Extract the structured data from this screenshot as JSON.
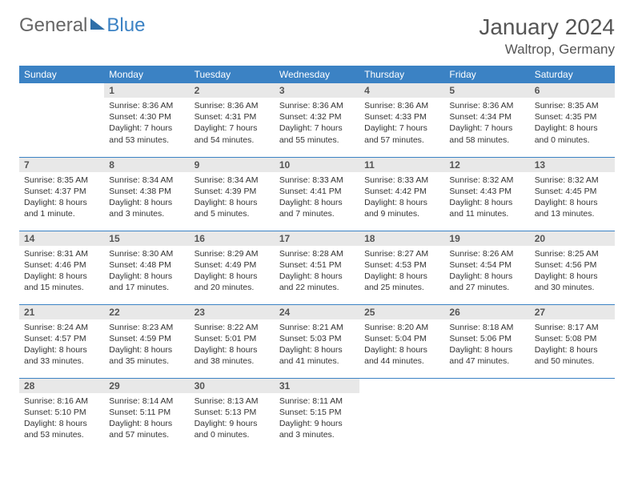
{
  "logo": {
    "text1": "General",
    "text2": "Blue"
  },
  "title": {
    "month": "January 2024",
    "location": "Waltrop, Germany"
  },
  "colors": {
    "header_bg": "#3b82c4",
    "header_text": "#ffffff",
    "daynum_bg": "#e8e8e8",
    "border": "#3b82c4",
    "text": "#333333"
  },
  "day_headers": [
    "Sunday",
    "Monday",
    "Tuesday",
    "Wednesday",
    "Thursday",
    "Friday",
    "Saturday"
  ],
  "weeks": [
    [
      {
        "n": "",
        "sr": "",
        "ss": "",
        "dl": ""
      },
      {
        "n": "1",
        "sr": "Sunrise: 8:36 AM",
        "ss": "Sunset: 4:30 PM",
        "dl": "Daylight: 7 hours and 53 minutes."
      },
      {
        "n": "2",
        "sr": "Sunrise: 8:36 AM",
        "ss": "Sunset: 4:31 PM",
        "dl": "Daylight: 7 hours and 54 minutes."
      },
      {
        "n": "3",
        "sr": "Sunrise: 8:36 AM",
        "ss": "Sunset: 4:32 PM",
        "dl": "Daylight: 7 hours and 55 minutes."
      },
      {
        "n": "4",
        "sr": "Sunrise: 8:36 AM",
        "ss": "Sunset: 4:33 PM",
        "dl": "Daylight: 7 hours and 57 minutes."
      },
      {
        "n": "5",
        "sr": "Sunrise: 8:36 AM",
        "ss": "Sunset: 4:34 PM",
        "dl": "Daylight: 7 hours and 58 minutes."
      },
      {
        "n": "6",
        "sr": "Sunrise: 8:35 AM",
        "ss": "Sunset: 4:35 PM",
        "dl": "Daylight: 8 hours and 0 minutes."
      }
    ],
    [
      {
        "n": "7",
        "sr": "Sunrise: 8:35 AM",
        "ss": "Sunset: 4:37 PM",
        "dl": "Daylight: 8 hours and 1 minute."
      },
      {
        "n": "8",
        "sr": "Sunrise: 8:34 AM",
        "ss": "Sunset: 4:38 PM",
        "dl": "Daylight: 8 hours and 3 minutes."
      },
      {
        "n": "9",
        "sr": "Sunrise: 8:34 AM",
        "ss": "Sunset: 4:39 PM",
        "dl": "Daylight: 8 hours and 5 minutes."
      },
      {
        "n": "10",
        "sr": "Sunrise: 8:33 AM",
        "ss": "Sunset: 4:41 PM",
        "dl": "Daylight: 8 hours and 7 minutes."
      },
      {
        "n": "11",
        "sr": "Sunrise: 8:33 AM",
        "ss": "Sunset: 4:42 PM",
        "dl": "Daylight: 8 hours and 9 minutes."
      },
      {
        "n": "12",
        "sr": "Sunrise: 8:32 AM",
        "ss": "Sunset: 4:43 PM",
        "dl": "Daylight: 8 hours and 11 minutes."
      },
      {
        "n": "13",
        "sr": "Sunrise: 8:32 AM",
        "ss": "Sunset: 4:45 PM",
        "dl": "Daylight: 8 hours and 13 minutes."
      }
    ],
    [
      {
        "n": "14",
        "sr": "Sunrise: 8:31 AM",
        "ss": "Sunset: 4:46 PM",
        "dl": "Daylight: 8 hours and 15 minutes."
      },
      {
        "n": "15",
        "sr": "Sunrise: 8:30 AM",
        "ss": "Sunset: 4:48 PM",
        "dl": "Daylight: 8 hours and 17 minutes."
      },
      {
        "n": "16",
        "sr": "Sunrise: 8:29 AM",
        "ss": "Sunset: 4:49 PM",
        "dl": "Daylight: 8 hours and 20 minutes."
      },
      {
        "n": "17",
        "sr": "Sunrise: 8:28 AM",
        "ss": "Sunset: 4:51 PM",
        "dl": "Daylight: 8 hours and 22 minutes."
      },
      {
        "n": "18",
        "sr": "Sunrise: 8:27 AM",
        "ss": "Sunset: 4:53 PM",
        "dl": "Daylight: 8 hours and 25 minutes."
      },
      {
        "n": "19",
        "sr": "Sunrise: 8:26 AM",
        "ss": "Sunset: 4:54 PM",
        "dl": "Daylight: 8 hours and 27 minutes."
      },
      {
        "n": "20",
        "sr": "Sunrise: 8:25 AM",
        "ss": "Sunset: 4:56 PM",
        "dl": "Daylight: 8 hours and 30 minutes."
      }
    ],
    [
      {
        "n": "21",
        "sr": "Sunrise: 8:24 AM",
        "ss": "Sunset: 4:57 PM",
        "dl": "Daylight: 8 hours and 33 minutes."
      },
      {
        "n": "22",
        "sr": "Sunrise: 8:23 AM",
        "ss": "Sunset: 4:59 PM",
        "dl": "Daylight: 8 hours and 35 minutes."
      },
      {
        "n": "23",
        "sr": "Sunrise: 8:22 AM",
        "ss": "Sunset: 5:01 PM",
        "dl": "Daylight: 8 hours and 38 minutes."
      },
      {
        "n": "24",
        "sr": "Sunrise: 8:21 AM",
        "ss": "Sunset: 5:03 PM",
        "dl": "Daylight: 8 hours and 41 minutes."
      },
      {
        "n": "25",
        "sr": "Sunrise: 8:20 AM",
        "ss": "Sunset: 5:04 PM",
        "dl": "Daylight: 8 hours and 44 minutes."
      },
      {
        "n": "26",
        "sr": "Sunrise: 8:18 AM",
        "ss": "Sunset: 5:06 PM",
        "dl": "Daylight: 8 hours and 47 minutes."
      },
      {
        "n": "27",
        "sr": "Sunrise: 8:17 AM",
        "ss": "Sunset: 5:08 PM",
        "dl": "Daylight: 8 hours and 50 minutes."
      }
    ],
    [
      {
        "n": "28",
        "sr": "Sunrise: 8:16 AM",
        "ss": "Sunset: 5:10 PM",
        "dl": "Daylight: 8 hours and 53 minutes."
      },
      {
        "n": "29",
        "sr": "Sunrise: 8:14 AM",
        "ss": "Sunset: 5:11 PM",
        "dl": "Daylight: 8 hours and 57 minutes."
      },
      {
        "n": "30",
        "sr": "Sunrise: 8:13 AM",
        "ss": "Sunset: 5:13 PM",
        "dl": "Daylight: 9 hours and 0 minutes."
      },
      {
        "n": "31",
        "sr": "Sunrise: 8:11 AM",
        "ss": "Sunset: 5:15 PM",
        "dl": "Daylight: 9 hours and 3 minutes."
      },
      {
        "n": "",
        "sr": "",
        "ss": "",
        "dl": ""
      },
      {
        "n": "",
        "sr": "",
        "ss": "",
        "dl": ""
      },
      {
        "n": "",
        "sr": "",
        "ss": "",
        "dl": ""
      }
    ]
  ]
}
